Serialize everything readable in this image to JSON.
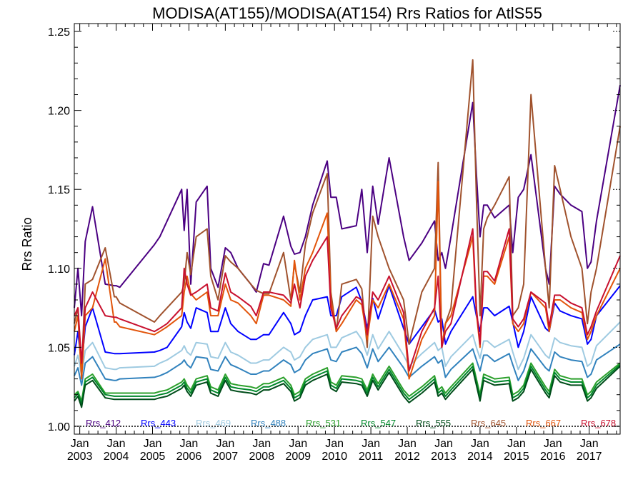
{
  "chart_data": {
    "type": "line",
    "title": "MODISA(AT155)/MODISA(AT154)  Rrs Ratios for AtlS55",
    "xlabel": "",
    "ylabel": "Rrs Ratio",
    "xlim": [
      2002.85,
      2017.85
    ],
    "ylim": [
      0.995,
      1.255
    ],
    "yticks": [
      "1.00",
      "1.05",
      "1.10",
      "1.15",
      "1.20",
      "1.25"
    ],
    "xticks": [
      {
        "month": "Jan",
        "year": "2003"
      },
      {
        "month": "Jan",
        "year": "2004"
      },
      {
        "month": "Jan",
        "year": "2005"
      },
      {
        "month": "Jan",
        "year": "2006"
      },
      {
        "month": "Jan",
        "year": "2007"
      },
      {
        "month": "Jan",
        "year": "2008"
      },
      {
        "month": "Jan",
        "year": "2009"
      },
      {
        "month": "Jan",
        "year": "2010"
      },
      {
        "month": "Jan",
        "year": "2011"
      },
      {
        "month": "Jan",
        "year": "2012"
      },
      {
        "month": "Jan",
        "year": "2013"
      },
      {
        "month": "Jan",
        "year": "2014"
      },
      {
        "month": "Jan",
        "year": "2015"
      },
      {
        "month": "Jan",
        "year": "2016"
      },
      {
        "month": "Jan",
        "year": "2017"
      }
    ],
    "reference_line": 1.0,
    "legend_placement": "bottom",
    "x": [
      2002.85,
      2002.95,
      2003.05,
      2003.15,
      2003.35,
      2003.7,
      2003.95,
      2004.0,
      2004.1,
      2005.05,
      2005.2,
      2005.4,
      2005.8,
      2005.87,
      2005.95,
      2006.05,
      2006.2,
      2006.5,
      2006.6,
      2006.8,
      2007.0,
      2007.15,
      2007.35,
      2007.7,
      2007.85,
      2008.05,
      2008.2,
      2008.6,
      2008.8,
      2008.9,
      2009.05,
      2009.2,
      2009.4,
      2009.8,
      2009.9,
      2010.05,
      2010.2,
      2010.6,
      2010.75,
      2010.9,
      2011.05,
      2011.2,
      2011.5,
      2011.9,
      2012.05,
      2012.4,
      2012.75,
      2012.85,
      2012.95,
      2013.05,
      2013.2,
      2013.8,
      2013.9,
      2014.0,
      2014.1,
      2014.2,
      2014.4,
      2014.8,
      2014.9,
      2015.05,
      2015.2,
      2015.4,
      2015.8,
      2015.9,
      2016.05,
      2016.2,
      2016.5,
      2016.8,
      2016.95,
      2017.05,
      2017.2,
      2017.85
    ],
    "series": [
      {
        "name": "Rrs_412",
        "color": "#4b0082",
        "values": [
          1.075,
          1.1,
          1.07,
          1.117,
          1.139,
          1.09,
          1.089,
          1.089,
          1.088,
          1.115,
          1.12,
          1.13,
          1.15,
          1.124,
          1.15,
          1.09,
          1.142,
          1.152,
          1.1,
          1.088,
          1.113,
          1.11,
          1.1,
          1.09,
          1.085,
          1.103,
          1.102,
          1.133,
          1.114,
          1.109,
          1.11,
          1.12,
          1.14,
          1.168,
          1.145,
          1.145,
          1.125,
          1.127,
          1.15,
          1.11,
          1.152,
          1.128,
          1.17,
          1.12,
          1.105,
          1.116,
          1.13,
          1.105,
          1.11,
          1.1,
          1.12,
          1.205,
          1.16,
          1.12,
          1.14,
          1.14,
          1.132,
          1.14,
          1.11,
          1.145,
          1.15,
          1.172,
          1.1,
          1.09,
          1.152,
          1.147,
          1.14,
          1.136,
          1.1,
          1.104,
          1.13,
          1.216
        ]
      },
      {
        "name": "Rrs_443",
        "color": "#0000ff",
        "values": [
          1.045,
          1.06,
          1.038,
          1.063,
          1.075,
          1.047,
          1.046,
          1.046,
          1.046,
          1.047,
          1.048,
          1.05,
          1.063,
          1.072,
          1.066,
          1.062,
          1.075,
          1.072,
          1.06,
          1.06,
          1.075,
          1.065,
          1.06,
          1.055,
          1.055,
          1.058,
          1.058,
          1.072,
          1.065,
          1.058,
          1.06,
          1.07,
          1.08,
          1.082,
          1.07,
          1.07,
          1.082,
          1.088,
          1.079,
          1.062,
          1.081,
          1.068,
          1.089,
          1.062,
          1.052,
          1.063,
          1.074,
          1.066,
          1.068,
          1.052,
          1.06,
          1.082,
          1.07,
          1.06,
          1.075,
          1.075,
          1.07,
          1.076,
          1.066,
          1.05,
          1.06,
          1.082,
          1.062,
          1.06,
          1.078,
          1.073,
          1.07,
          1.068,
          1.052,
          1.055,
          1.07,
          1.089
        ]
      },
      {
        "name": "Rrs_469",
        "color": "#9ecae1",
        "values": [
          1.038,
          1.045,
          1.032,
          1.048,
          1.053,
          1.037,
          1.036,
          1.036,
          1.037,
          1.038,
          1.04,
          1.042,
          1.048,
          1.051,
          1.047,
          1.045,
          1.053,
          1.052,
          1.044,
          1.043,
          1.053,
          1.047,
          1.045,
          1.04,
          1.04,
          1.042,
          1.042,
          1.05,
          1.047,
          1.042,
          1.044,
          1.05,
          1.055,
          1.058,
          1.05,
          1.05,
          1.056,
          1.06,
          1.055,
          1.045,
          1.058,
          1.049,
          1.06,
          1.045,
          1.038,
          1.046,
          1.053,
          1.048,
          1.05,
          1.038,
          1.044,
          1.058,
          1.05,
          1.043,
          1.054,
          1.054,
          1.05,
          1.055,
          1.047,
          1.036,
          1.043,
          1.058,
          1.045,
          1.043,
          1.056,
          1.053,
          1.051,
          1.05,
          1.038,
          1.04,
          1.051,
          1.066
        ]
      },
      {
        "name": "Rrs_488",
        "color": "#3182bd",
        "values": [
          1.032,
          1.037,
          1.026,
          1.04,
          1.044,
          1.03,
          1.029,
          1.029,
          1.03,
          1.031,
          1.032,
          1.034,
          1.04,
          1.042,
          1.039,
          1.037,
          1.044,
          1.043,
          1.036,
          1.035,
          1.044,
          1.039,
          1.037,
          1.033,
          1.033,
          1.035,
          1.035,
          1.042,
          1.039,
          1.034,
          1.036,
          1.042,
          1.046,
          1.049,
          1.042,
          1.041,
          1.047,
          1.05,
          1.046,
          1.037,
          1.049,
          1.041,
          1.05,
          1.037,
          1.031,
          1.038,
          1.044,
          1.04,
          1.042,
          1.031,
          1.036,
          1.049,
          1.042,
          1.035,
          1.045,
          1.045,
          1.041,
          1.046,
          1.039,
          1.029,
          1.035,
          1.049,
          1.037,
          1.035,
          1.047,
          1.044,
          1.042,
          1.041,
          1.031,
          1.033,
          1.042,
          1.052
        ]
      },
      {
        "name": "Rrs_531",
        "color": "#2ca02c",
        "values": [
          1.02,
          1.022,
          1.016,
          1.03,
          1.033,
          1.021,
          1.021,
          1.021,
          1.021,
          1.021,
          1.022,
          1.023,
          1.028,
          1.03,
          1.026,
          1.023,
          1.03,
          1.032,
          1.025,
          1.023,
          1.033,
          1.027,
          1.026,
          1.025,
          1.024,
          1.027,
          1.027,
          1.031,
          1.026,
          1.02,
          1.022,
          1.03,
          1.033,
          1.037,
          1.028,
          1.026,
          1.032,
          1.031,
          1.03,
          1.023,
          1.033,
          1.027,
          1.038,
          1.023,
          1.019,
          1.025,
          1.032,
          1.023,
          1.025,
          1.021,
          1.025,
          1.04,
          1.03,
          1.02,
          1.033,
          1.032,
          1.03,
          1.031,
          1.02,
          1.022,
          1.026,
          1.04,
          1.025,
          1.022,
          1.036,
          1.032,
          1.03,
          1.03,
          1.02,
          1.022,
          1.028,
          1.04
        ]
      },
      {
        "name": "Rrs_547",
        "color": "#00882b",
        "values": [
          1.018,
          1.021,
          1.014,
          1.028,
          1.031,
          1.02,
          1.019,
          1.019,
          1.019,
          1.019,
          1.02,
          1.021,
          1.026,
          1.028,
          1.024,
          1.021,
          1.028,
          1.03,
          1.023,
          1.021,
          1.031,
          1.025,
          1.024,
          1.023,
          1.022,
          1.025,
          1.025,
          1.029,
          1.024,
          1.018,
          1.02,
          1.028,
          1.031,
          1.035,
          1.026,
          1.024,
          1.03,
          1.029,
          1.028,
          1.021,
          1.031,
          1.025,
          1.036,
          1.021,
          1.017,
          1.023,
          1.03,
          1.021,
          1.023,
          1.019,
          1.023,
          1.038,
          1.028,
          1.018,
          1.031,
          1.03,
          1.028,
          1.029,
          1.018,
          1.02,
          1.024,
          1.038,
          1.023,
          1.02,
          1.034,
          1.03,
          1.028,
          1.028,
          1.018,
          1.02,
          1.026,
          1.039
        ]
      },
      {
        "name": "Rrs_555",
        "color": "#004d1a",
        "values": [
          1.016,
          1.019,
          1.012,
          1.026,
          1.029,
          1.018,
          1.017,
          1.017,
          1.017,
          1.017,
          1.018,
          1.019,
          1.024,
          1.026,
          1.022,
          1.019,
          1.026,
          1.028,
          1.021,
          1.019,
          1.029,
          1.023,
          1.022,
          1.021,
          1.02,
          1.023,
          1.023,
          1.027,
          1.022,
          1.016,
          1.018,
          1.026,
          1.029,
          1.033,
          1.024,
          1.022,
          1.028,
          1.027,
          1.026,
          1.019,
          1.029,
          1.023,
          1.034,
          1.019,
          1.015,
          1.021,
          1.028,
          1.019,
          1.021,
          1.017,
          1.021,
          1.036,
          1.026,
          1.016,
          1.029,
          1.028,
          1.026,
          1.027,
          1.016,
          1.018,
          1.022,
          1.036,
          1.021,
          1.018,
          1.032,
          1.028,
          1.026,
          1.026,
          1.016,
          1.018,
          1.024,
          1.038
        ]
      },
      {
        "name": "Rrs_645",
        "color": "#a0522d",
        "values": [
          1.065,
          1.075,
          1.035,
          1.09,
          1.093,
          1.113,
          1.082,
          1.082,
          1.078,
          1.066,
          1.07,
          1.075,
          1.085,
          1.09,
          1.11,
          1.096,
          1.12,
          1.125,
          1.095,
          1.08,
          1.108,
          1.104,
          1.1,
          1.09,
          1.086,
          1.084,
          1.084,
          1.11,
          1.08,
          1.103,
          1.085,
          1.115,
          1.135,
          1.16,
          1.085,
          1.06,
          1.09,
          1.093,
          1.087,
          1.05,
          1.133,
          1.12,
          1.1,
          1.08,
          1.052,
          1.085,
          1.1,
          1.167,
          1.05,
          1.065,
          1.075,
          1.232,
          1.145,
          1.07,
          1.125,
          1.132,
          1.14,
          1.158,
          1.07,
          1.075,
          1.09,
          1.21,
          1.1,
          1.075,
          1.165,
          1.15,
          1.12,
          1.1,
          1.065,
          1.085,
          1.1,
          1.19
        ]
      },
      {
        "name": "Rrs_667",
        "color": "#e2540a",
        "values": [
          1.06,
          1.07,
          1.03,
          1.07,
          1.075,
          1.106,
          1.066,
          1.066,
          1.063,
          1.058,
          1.06,
          1.063,
          1.07,
          1.085,
          1.095,
          1.084,
          1.08,
          1.085,
          1.07,
          1.07,
          1.09,
          1.08,
          1.078,
          1.07,
          1.065,
          1.083,
          1.083,
          1.08,
          1.076,
          1.105,
          1.08,
          1.1,
          1.11,
          1.135,
          1.08,
          1.06,
          1.065,
          1.08,
          1.077,
          1.055,
          1.08,
          1.075,
          1.09,
          1.068,
          1.03,
          1.055,
          1.07,
          1.155,
          1.05,
          1.065,
          1.07,
          1.12,
          1.072,
          1.05,
          1.095,
          1.095,
          1.09,
          1.12,
          1.065,
          1.06,
          1.065,
          1.085,
          1.075,
          1.06,
          1.08,
          1.08,
          1.075,
          1.072,
          1.055,
          1.06,
          1.07,
          1.1
        ]
      },
      {
        "name": "Rrs_678",
        "color": "#c8102e",
        "values": [
          1.07,
          1.075,
          1.04,
          1.075,
          1.085,
          1.07,
          1.069,
          1.069,
          1.068,
          1.06,
          1.062,
          1.065,
          1.075,
          1.1,
          1.09,
          1.083,
          1.085,
          1.09,
          1.075,
          1.073,
          1.097,
          1.085,
          1.082,
          1.076,
          1.07,
          1.085,
          1.085,
          1.083,
          1.078,
          1.09,
          1.075,
          1.095,
          1.105,
          1.12,
          1.075,
          1.062,
          1.07,
          1.082,
          1.08,
          1.058,
          1.085,
          1.08,
          1.095,
          1.072,
          1.035,
          1.06,
          1.075,
          1.095,
          1.05,
          1.06,
          1.065,
          1.125,
          1.075,
          1.052,
          1.098,
          1.098,
          1.092,
          1.125,
          1.068,
          1.063,
          1.068,
          1.085,
          1.078,
          1.063,
          1.083,
          1.083,
          1.078,
          1.075,
          1.058,
          1.063,
          1.073,
          1.108
        ]
      }
    ]
  }
}
